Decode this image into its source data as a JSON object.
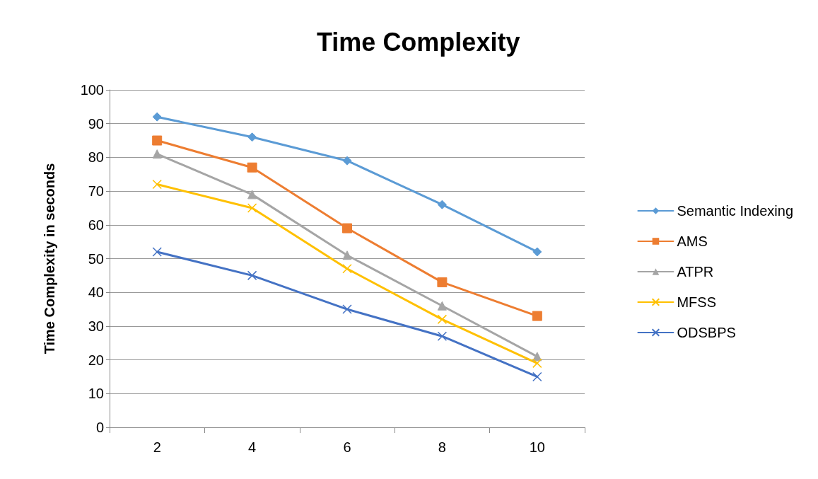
{
  "chart_data": {
    "type": "line",
    "title": "Time Complexity",
    "ylabel": "Time Complexity in seconds",
    "categories": [
      "2",
      "4",
      "6",
      "8",
      "10"
    ],
    "series": [
      {
        "name": "Semantic Indexing",
        "color": "#5b9bd5",
        "marker": "diamond",
        "values": [
          92,
          86,
          79,
          66,
          52
        ]
      },
      {
        "name": "AMS",
        "color": "#ed7d31",
        "marker": "square",
        "values": [
          85,
          77,
          59,
          43,
          33
        ]
      },
      {
        "name": "ATPR",
        "color": "#a5a5a5",
        "marker": "triangle",
        "values": [
          81,
          69,
          51,
          36,
          21
        ]
      },
      {
        "name": "MFSS",
        "color": "#ffc000",
        "marker": "cross",
        "values": [
          72,
          65,
          47,
          32,
          19
        ]
      },
      {
        "name": "ODSBPS",
        "color": "#4472c4",
        "marker": "cross",
        "values": [
          52,
          45,
          35,
          27,
          15
        ]
      }
    ],
    "ylim": [
      0,
      100
    ],
    "yticks": [
      0,
      10,
      20,
      30,
      40,
      50,
      60,
      70,
      80,
      90,
      100
    ],
    "grid": "y",
    "legend": "right"
  }
}
